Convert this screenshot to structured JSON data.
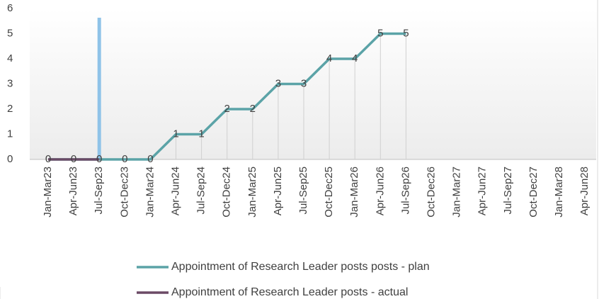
{
  "chart_data": {
    "type": "line",
    "categories": [
      "Jan-Mar23",
      "Apr-Jun23",
      "Jul-Sep23",
      "Oct-Dec23",
      "Jan-Mar24",
      "Apr-Jun24",
      "Jul-Sep24",
      "Oct-Dec24",
      "Jan-Mar25",
      "Apr-Jun25",
      "Jul-Sep25",
      "Oct-Dec25",
      "Jan-Mar26",
      "Apr-Jun26",
      "Jul-Sep26",
      "Oct-Dec26",
      "Jan-Mar27",
      "Apr-Jun27",
      "Jul-Sep27",
      "Oct-Dec27",
      "Jan-Mar28",
      "Apr-Jun28"
    ],
    "series": [
      {
        "name": "Appointment of Research Leader posts posts - plan",
        "color": "#5ba3a7",
        "values": [
          0,
          0,
          0,
          0,
          0,
          1,
          1,
          2,
          2,
          3,
          3,
          4,
          4,
          5,
          5,
          null,
          null,
          null,
          null,
          null,
          null,
          null
        ]
      },
      {
        "name": "Appointment of Research Leader posts - actual",
        "color": "#6b4a66",
        "values": [
          0,
          0,
          0,
          null,
          null,
          null,
          null,
          null,
          null,
          null,
          null,
          null,
          null,
          null,
          null,
          null,
          null,
          null,
          null,
          null,
          null,
          null
        ]
      }
    ],
    "ylim": [
      0,
      6
    ],
    "yticks": [
      0,
      1,
      2,
      3,
      4,
      5,
      6
    ],
    "grid": false
  }
}
